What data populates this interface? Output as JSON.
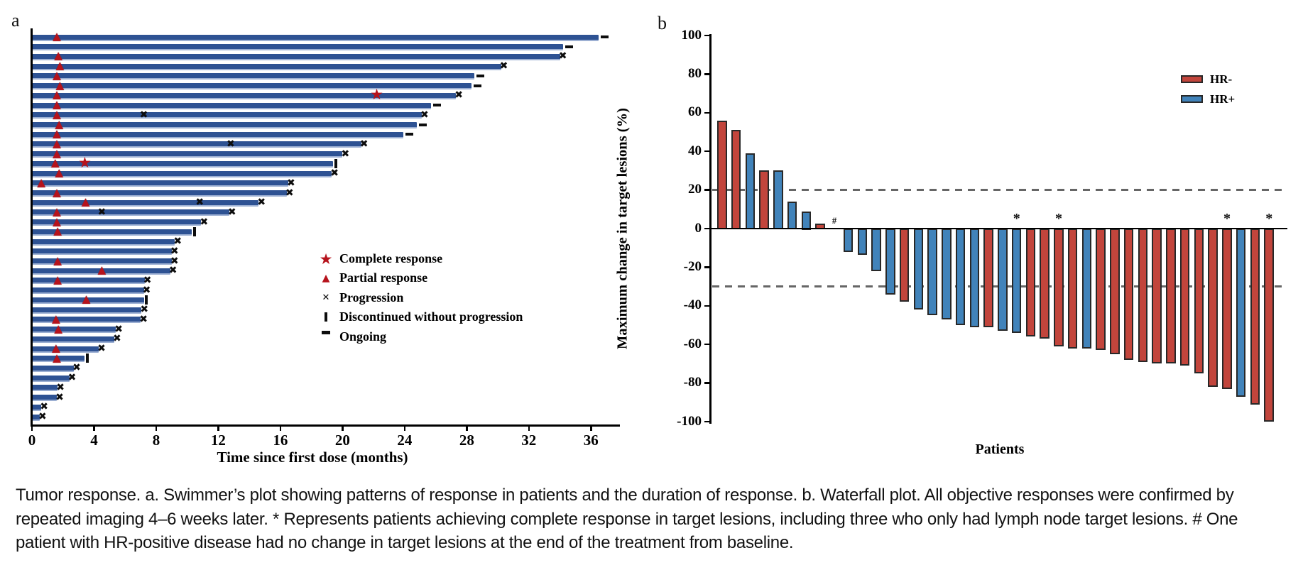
{
  "caption": "Tumor response. a. Swimmer’s plot showing patterns of response in patients and the duration of response. b. Waterfall plot. All objective responses were confirmed by repeated imaging 4–6 weeks later. * Represents patients achieving complete response in target lesions, including three who only had lymph node target lesions. # One patient with HR-positive disease had no change in target lesions at the end of the treatment from baseline.",
  "colors": {
    "swimmer_bar_blue": "#2e5293",
    "marker_red": "#b6131c",
    "hr_negative_red": "#c2453c",
    "hr_positive_blue": "#4183ba",
    "dashed_line_gray": "#666666",
    "axis_black": "#000000"
  },
  "chart_data": [
    {
      "type": "swimmer",
      "title": "a",
      "xlabel": "Time since first dose (months)",
      "xticks": [
        0,
        4,
        8,
        12,
        16,
        20,
        24,
        28,
        32,
        36
      ],
      "xlim": [
        0,
        37.5
      ],
      "legend": [
        {
          "symbol": "star",
          "label": "Complete response"
        },
        {
          "symbol": "triangle",
          "label": "Partial response"
        },
        {
          "symbol": "x",
          "label": "Progression"
        },
        {
          "symbol": "vbar",
          "label": "Discontinued without progression"
        },
        {
          "symbol": "dash",
          "label": "Ongoing"
        }
      ],
      "bars": [
        {
          "end": 36.5,
          "end_marker": "ongoing",
          "pr": [
            1.6
          ],
          "cr": [],
          "prog": []
        },
        {
          "end": 34.2,
          "end_marker": "ongoing",
          "pr": [],
          "cr": [],
          "prog": []
        },
        {
          "end": 34.0,
          "end_marker": "progression",
          "pr": [
            1.7
          ],
          "cr": [],
          "prog": []
        },
        {
          "end": 30.2,
          "end_marker": "progression",
          "pr": [
            1.8
          ],
          "cr": [],
          "prog": []
        },
        {
          "end": 28.5,
          "end_marker": "ongoing",
          "pr": [
            1.6
          ],
          "cr": [],
          "prog": []
        },
        {
          "end": 28.3,
          "end_marker": "ongoing",
          "pr": [
            1.8
          ],
          "cr": [],
          "prog": []
        },
        {
          "end": 27.3,
          "end_marker": "progression",
          "pr": [
            1.6
          ],
          "cr": [
            22.2
          ],
          "prog": []
        },
        {
          "end": 25.7,
          "end_marker": "ongoing",
          "pr": [
            1.6
          ],
          "cr": [],
          "prog": []
        },
        {
          "end": 25.1,
          "end_marker": "progression",
          "pr": [
            1.6
          ],
          "cr": [],
          "prog": [
            7.2
          ]
        },
        {
          "end": 24.8,
          "end_marker": "ongoing",
          "pr": [
            1.75
          ],
          "cr": [],
          "prog": []
        },
        {
          "end": 23.9,
          "end_marker": "ongoing",
          "pr": [
            1.6
          ],
          "cr": [],
          "prog": []
        },
        {
          "end": 21.2,
          "end_marker": "progression",
          "pr": [
            1.6
          ],
          "cr": [],
          "prog": [
            12.8
          ]
        },
        {
          "end": 20.0,
          "end_marker": "progression",
          "pr": [
            1.6
          ],
          "cr": [],
          "prog": []
        },
        {
          "end": 19.4,
          "end_marker": "discontinued",
          "pr": [
            1.5
          ],
          "cr": [
            3.4
          ],
          "prog": []
        },
        {
          "end": 19.3,
          "end_marker": "progression",
          "pr": [
            1.75
          ],
          "cr": [],
          "prog": []
        },
        {
          "end": 16.5,
          "end_marker": "progression",
          "pr": [
            0.6
          ],
          "cr": [],
          "prog": []
        },
        {
          "end": 16.4,
          "end_marker": "progression",
          "pr": [
            1.6
          ],
          "cr": [],
          "prog": []
        },
        {
          "end": 14.6,
          "end_marker": "progression",
          "pr": [
            3.45
          ],
          "cr": [],
          "prog": [
            10.8
          ]
        },
        {
          "end": 12.7,
          "end_marker": "progression",
          "pr": [
            1.6
          ],
          "cr": [],
          "prog": [
            4.5
          ]
        },
        {
          "end": 10.9,
          "end_marker": "progression",
          "pr": [
            1.6
          ],
          "cr": [],
          "prog": []
        },
        {
          "end": 10.3,
          "end_marker": "discontinued",
          "pr": [
            1.65
          ],
          "cr": [],
          "prog": []
        },
        {
          "end": 9.2,
          "end_marker": "progression",
          "pr": [],
          "cr": [],
          "prog": []
        },
        {
          "end": 9.0,
          "end_marker": "progression",
          "pr": [],
          "cr": [],
          "prog": []
        },
        {
          "end": 9.0,
          "end_marker": "progression",
          "pr": [
            1.65
          ],
          "cr": [],
          "prog": []
        },
        {
          "end": 8.9,
          "end_marker": "progression",
          "pr": [
            4.5
          ],
          "cr": [],
          "prog": []
        },
        {
          "end": 7.25,
          "end_marker": "progression",
          "pr": [
            1.65
          ],
          "cr": [],
          "prog": []
        },
        {
          "end": 7.2,
          "end_marker": "progression",
          "pr": [],
          "cr": [],
          "prog": []
        },
        {
          "end": 7.2,
          "end_marker": "discontinued",
          "pr": [
            3.5
          ],
          "cr": [],
          "prog": []
        },
        {
          "end": 7.05,
          "end_marker": "progression",
          "pr": [],
          "cr": [],
          "prog": []
        },
        {
          "end": 7.0,
          "end_marker": "progression",
          "pr": [
            1.55
          ],
          "cr": [],
          "prog": []
        },
        {
          "end": 5.4,
          "end_marker": "progression",
          "pr": [
            1.7
          ],
          "cr": [],
          "prog": []
        },
        {
          "end": 5.3,
          "end_marker": "progression",
          "pr": [],
          "cr": [],
          "prog": []
        },
        {
          "end": 4.3,
          "end_marker": "progression",
          "pr": [
            1.55
          ],
          "cr": [],
          "prog": []
        },
        {
          "end": 3.4,
          "end_marker": "discontinued",
          "pr": [
            1.6
          ],
          "cr": [],
          "prog": []
        },
        {
          "end": 2.7,
          "end_marker": "progression",
          "pr": [],
          "cr": [],
          "prog": []
        },
        {
          "end": 2.4,
          "end_marker": "progression",
          "pr": [],
          "cr": [],
          "prog": []
        },
        {
          "end": 1.65,
          "end_marker": "progression",
          "pr": [],
          "cr": [],
          "prog": []
        },
        {
          "end": 1.6,
          "end_marker": "progression",
          "pr": [],
          "cr": [],
          "prog": []
        },
        {
          "end": 0.6,
          "end_marker": "progression",
          "pr": [],
          "cr": [],
          "prog": []
        },
        {
          "end": 0.5,
          "end_marker": "progression",
          "pr": [],
          "cr": [],
          "prog": []
        }
      ]
    },
    {
      "type": "waterfall",
      "title": "b",
      "ylabel": "Maximum change in target lesions (%)",
      "xlabel": "Patients",
      "ylim": [
        -100,
        100
      ],
      "yticks": [
        100,
        80,
        60,
        40,
        20,
        0,
        -20,
        -40,
        -60,
        -80,
        -100
      ],
      "ref_lines": [
        20,
        -30
      ],
      "legend": [
        {
          "label": "HR-",
          "color": "#c2453c"
        },
        {
          "label": "HR+",
          "color": "#4183ba"
        }
      ],
      "patients": [
        {
          "value": 56,
          "group": "HR-"
        },
        {
          "value": 51,
          "group": "HR-"
        },
        {
          "value": 39,
          "group": "HR+"
        },
        {
          "value": 30,
          "group": "HR-"
        },
        {
          "value": 30,
          "group": "HR+"
        },
        {
          "value": 14,
          "group": "HR+"
        },
        {
          "value": 9,
          "group": "HR+"
        },
        {
          "value": 2.5,
          "group": "HR-"
        },
        {
          "value": 0,
          "group": "HR+",
          "note": "#"
        },
        {
          "value": -12,
          "group": "HR+"
        },
        {
          "value": -13.5,
          "group": "HR+"
        },
        {
          "value": -22,
          "group": "HR+"
        },
        {
          "value": -34,
          "group": "HR+"
        },
        {
          "value": -38,
          "group": "HR-"
        },
        {
          "value": -42,
          "group": "HR+"
        },
        {
          "value": -45,
          "group": "HR+"
        },
        {
          "value": -47,
          "group": "HR+"
        },
        {
          "value": -50,
          "group": "HR+"
        },
        {
          "value": -51,
          "group": "HR+"
        },
        {
          "value": -51,
          "group": "HR-"
        },
        {
          "value": -53,
          "group": "HR+"
        },
        {
          "value": -54,
          "group": "HR+",
          "note": "*"
        },
        {
          "value": -56,
          "group": "HR-"
        },
        {
          "value": -57,
          "group": "HR-"
        },
        {
          "value": -61,
          "group": "HR-",
          "note": "*"
        },
        {
          "value": -62,
          "group": "HR-"
        },
        {
          "value": -62,
          "group": "HR+"
        },
        {
          "value": -63,
          "group": "HR-"
        },
        {
          "value": -65,
          "group": "HR-"
        },
        {
          "value": -68,
          "group": "HR-"
        },
        {
          "value": -69,
          "group": "HR-"
        },
        {
          "value": -70,
          "group": "HR-"
        },
        {
          "value": -70,
          "group": "HR-"
        },
        {
          "value": -71,
          "group": "HR-"
        },
        {
          "value": -75,
          "group": "HR-"
        },
        {
          "value": -82,
          "group": "HR-"
        },
        {
          "value": -83,
          "group": "HR-",
          "note": "*"
        },
        {
          "value": -87,
          "group": "HR+"
        },
        {
          "value": -91,
          "group": "HR-"
        },
        {
          "value": -100,
          "group": "HR-",
          "note": "*"
        }
      ]
    }
  ]
}
